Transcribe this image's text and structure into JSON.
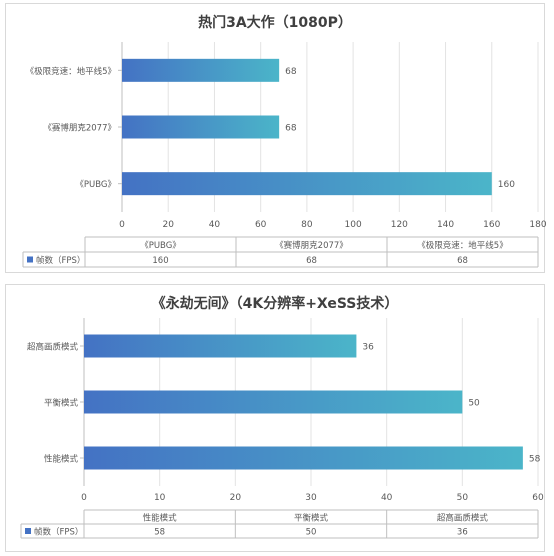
{
  "colors": {
    "bar_start": "#4472c4",
    "bar_end": "#4bb5c9",
    "grid": "#e3e3e3",
    "axis": "#bfbfbf",
    "text": "#595959"
  },
  "chart_data": [
    {
      "type": "bar",
      "orientation": "horizontal",
      "title": "热门3A大作（1080P）",
      "categories": [
        "《PUBG》",
        "《赛博朋克2077》",
        "《极限竞速：地平线5》"
      ],
      "series": [
        {
          "name": "帧数（FPS）",
          "values": [
            160,
            68,
            68
          ]
        }
      ],
      "xlim": [
        0,
        180
      ],
      "xticks": [
        "0",
        "20",
        "40",
        "60",
        "80",
        "100",
        "120",
        "140",
        "160",
        "180"
      ],
      "grid": true,
      "data_table": true
    },
    {
      "type": "bar",
      "orientation": "horizontal",
      "title": "《永劫无间》（4K分辨率+XeSS技术）",
      "categories": [
        "性能模式",
        "平衡模式",
        "超高画质模式"
      ],
      "series": [
        {
          "name": "帧数（FPS）",
          "values": [
            58,
            50,
            36
          ]
        }
      ],
      "xlim": [
        0,
        60
      ],
      "xticks": [
        "0",
        "10",
        "20",
        "30",
        "40",
        "50",
        "60"
      ],
      "grid": true,
      "data_table": true
    }
  ]
}
